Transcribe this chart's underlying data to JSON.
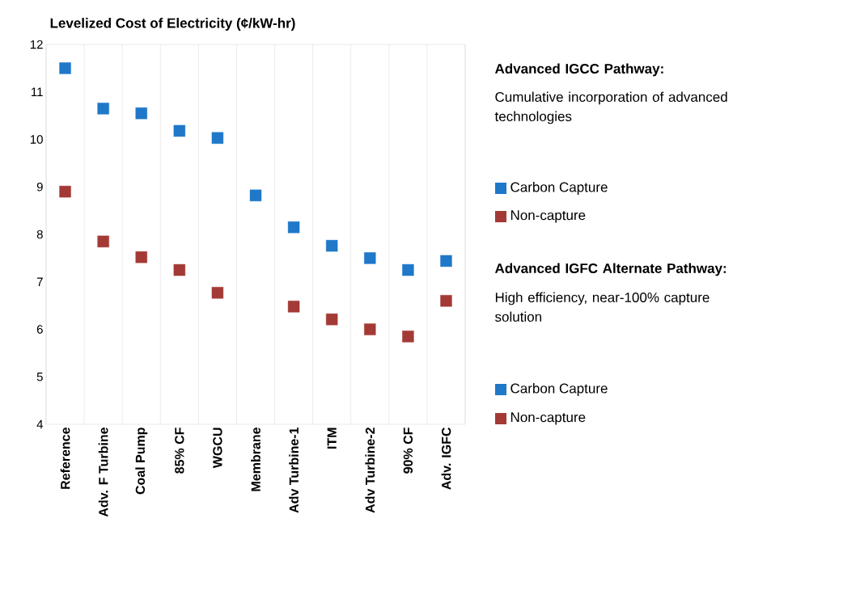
{
  "chart_data": {
    "type": "scatter",
    "title": "Levelized Cost of Electricity (¢/kW-hr)",
    "categories": [
      "Reference",
      "Adv. F Turbine",
      "Coal Pump",
      "85% CF",
      "WGCU",
      "Membrane",
      "Adv Turbine-1",
      "ITM",
      "Adv Turbine-2",
      "90% CF",
      "Adv. IGFC"
    ],
    "series": [
      {
        "name": "Carbon Capture",
        "color": "#1f78c8",
        "values": [
          11.5,
          10.65,
          10.55,
          10.18,
          10.03,
          8.82,
          8.15,
          7.76,
          7.5,
          7.25,
          null
        ]
      },
      {
        "name": "Non-capture",
        "color": "#a33a36",
        "values": [
          8.9,
          7.85,
          7.52,
          7.25,
          6.77,
          null,
          6.48,
          6.21,
          6.0,
          5.85,
          null
        ]
      },
      {
        "name": "Carbon Capture",
        "color": "#1f78c8",
        "values": [
          null,
          null,
          null,
          null,
          null,
          null,
          null,
          null,
          null,
          null,
          7.44
        ]
      },
      {
        "name": "Non-capture",
        "color": "#a33a36",
        "values": [
          null,
          null,
          null,
          null,
          null,
          null,
          null,
          null,
          null,
          null,
          6.6
        ]
      }
    ],
    "ylim": [
      4,
      12
    ],
    "yticks": [
      4,
      5,
      6,
      7,
      8,
      9,
      10,
      11,
      12
    ],
    "grid": "x",
    "marker": "square",
    "legend": "right",
    "annotations": [
      "Advanced IGCC Pathway:",
      "Cumulative incorporation of advanced technologies",
      "Advanced IGFC Alternate Pathway:",
      "High efficiency, near-100% capture solution"
    ]
  }
}
